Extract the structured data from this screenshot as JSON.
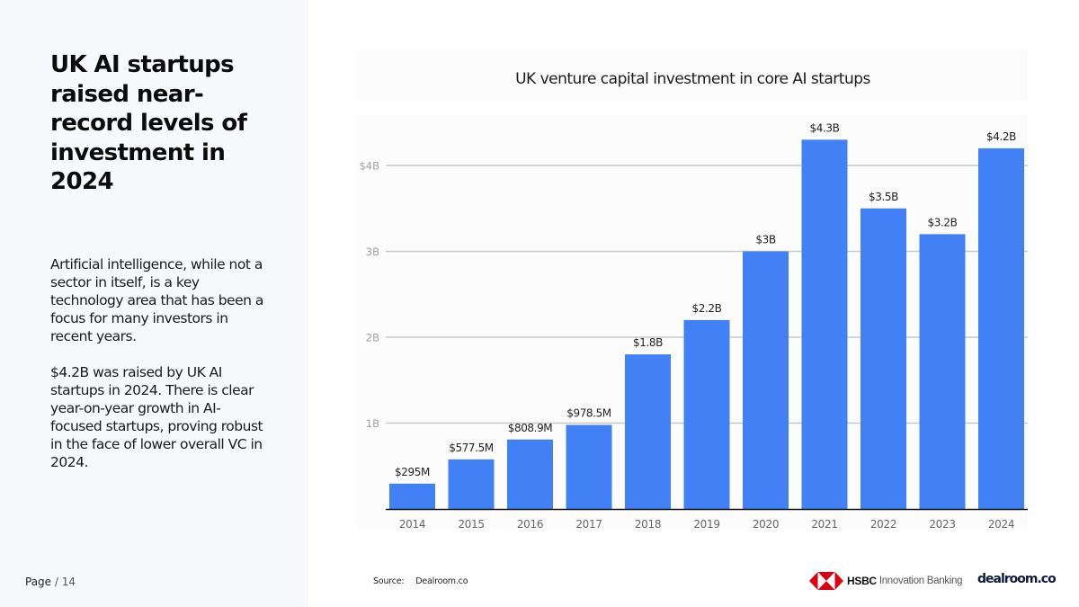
{
  "sidebar": {
    "headline": "UK AI startups raised near-record levels of investment in 2024",
    "paragraphs": [
      "Artificial intelligence, while not a sector in itself, is a key technology area that has been a focus for many investors in recent years.",
      "$4.2B was raised by UK AI startups in 2024. There is clear year-on-year growth in AI-focused startups, proving robust in the face of lower overall VC in 2024."
    ],
    "page_label": "Page",
    "page_total": "/ 14"
  },
  "footer": {
    "source_label": "Source:",
    "source_value": "Dealroom.co",
    "hsbc_name": "HSBC",
    "hsbc_sub": "Innovation Banking",
    "dealroom_logo": "dealroom.co"
  },
  "colors": {
    "bar": "#4180f5",
    "hsbc_red": "#db0011",
    "gridline": "#c8c8c8",
    "axis_text": "#a0a0a0"
  },
  "chart_data": {
    "type": "bar",
    "title": "UK venture capital investment in core AI startups",
    "xlabel": "",
    "ylabel": "",
    "categories": [
      "2014",
      "2015",
      "2016",
      "2017",
      "2018",
      "2019",
      "2020",
      "2021",
      "2022",
      "2023",
      "2024"
    ],
    "values": [
      0.295,
      0.5775,
      0.8089,
      0.9785,
      1.8,
      2.2,
      3.0,
      4.3,
      3.5,
      3.2,
      4.2
    ],
    "data_labels": [
      "$295M",
      "$577.5M",
      "$808.9M",
      "$978.5M",
      "$1.8B",
      "$2.2B",
      "$3B",
      "$4.3B",
      "$3.5B",
      "$3.2B",
      "$4.2B"
    ],
    "y_ticks": [
      1,
      2,
      3,
      4
    ],
    "y_tick_labels": [
      "1B",
      "2B",
      "3B",
      "$4B"
    ],
    "ylim": [
      0,
      4.6
    ],
    "unit": "USD billions",
    "grid": true,
    "legend": "none"
  }
}
